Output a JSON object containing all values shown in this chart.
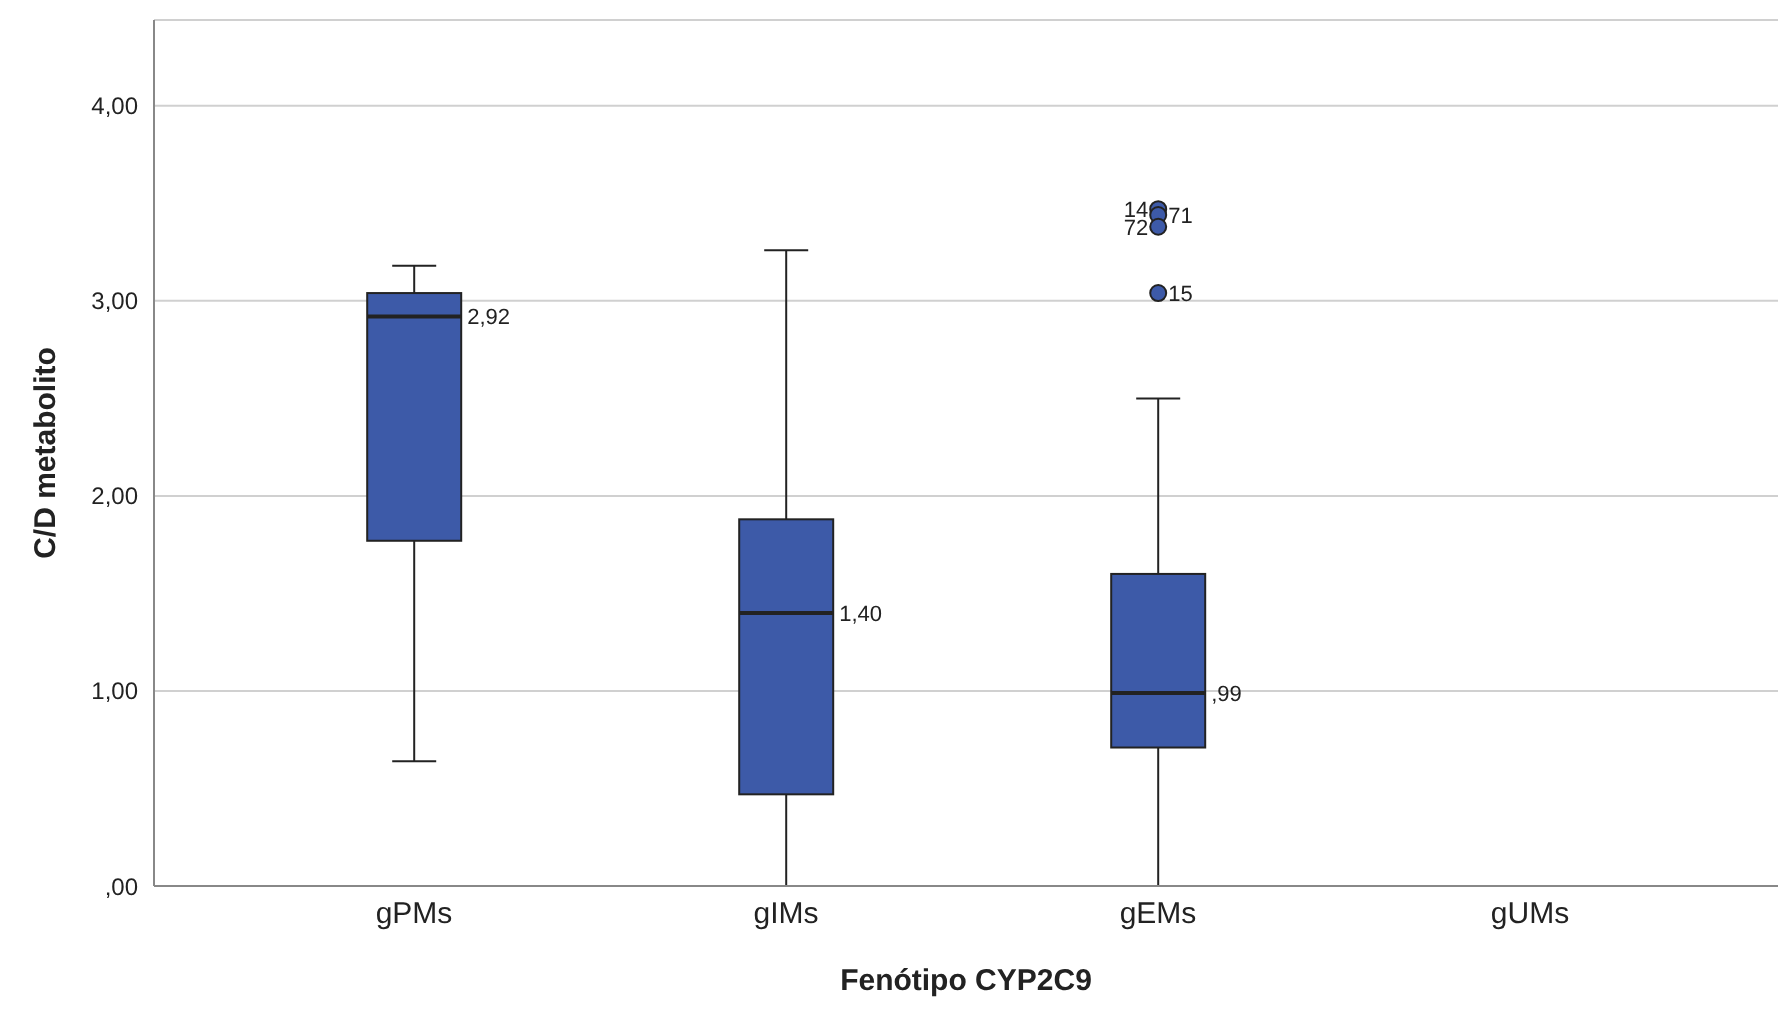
{
  "chart_data": {
    "type": "box",
    "xlabel": "Fenótipo CYP2C9",
    "ylabel": "C/D metabolito",
    "categories": [
      "gPMs",
      "gIMs",
      "gEMs",
      "gUMs"
    ],
    "color": "#3d5aa8",
    "boxes": [
      {
        "low": 0.64,
        "q1": 1.77,
        "median": 2.92,
        "q3": 3.04,
        "high": 3.18
      },
      {
        "low": 0,
        "q1": 0.47,
        "median": 1.4,
        "q3": 1.88,
        "high": 3.26
      },
      {
        "low": 0,
        "q1": 0.71,
        "median": 0.99,
        "q3": 1.6,
        "high": 2.5,
        "outliers": [
          3.47,
          3.44,
          3.38,
          3.04
        ]
      },
      null
    ],
    "ylim": [
      0,
      4.44
    ],
    "yticks": [
      {
        "value": 0,
        "label": ",00"
      },
      {
        "value": 1,
        "label": "1,00"
      },
      {
        "value": 2,
        "label": "2,00"
      },
      {
        "value": 3,
        "label": "3,00"
      },
      {
        "value": 4,
        "label": "4,00"
      }
    ],
    "grid": "y",
    "annotations": [
      {
        "text": "2,92",
        "x": "gPMs",
        "y": 2.92
      },
      {
        "text": "1,40",
        "x": "gIMs",
        "y": 1.4
      },
      {
        "text": ",99",
        "x": "gEMs",
        "y": 0.99
      },
      "14",
      "71",
      "72",
      "15"
    ]
  }
}
